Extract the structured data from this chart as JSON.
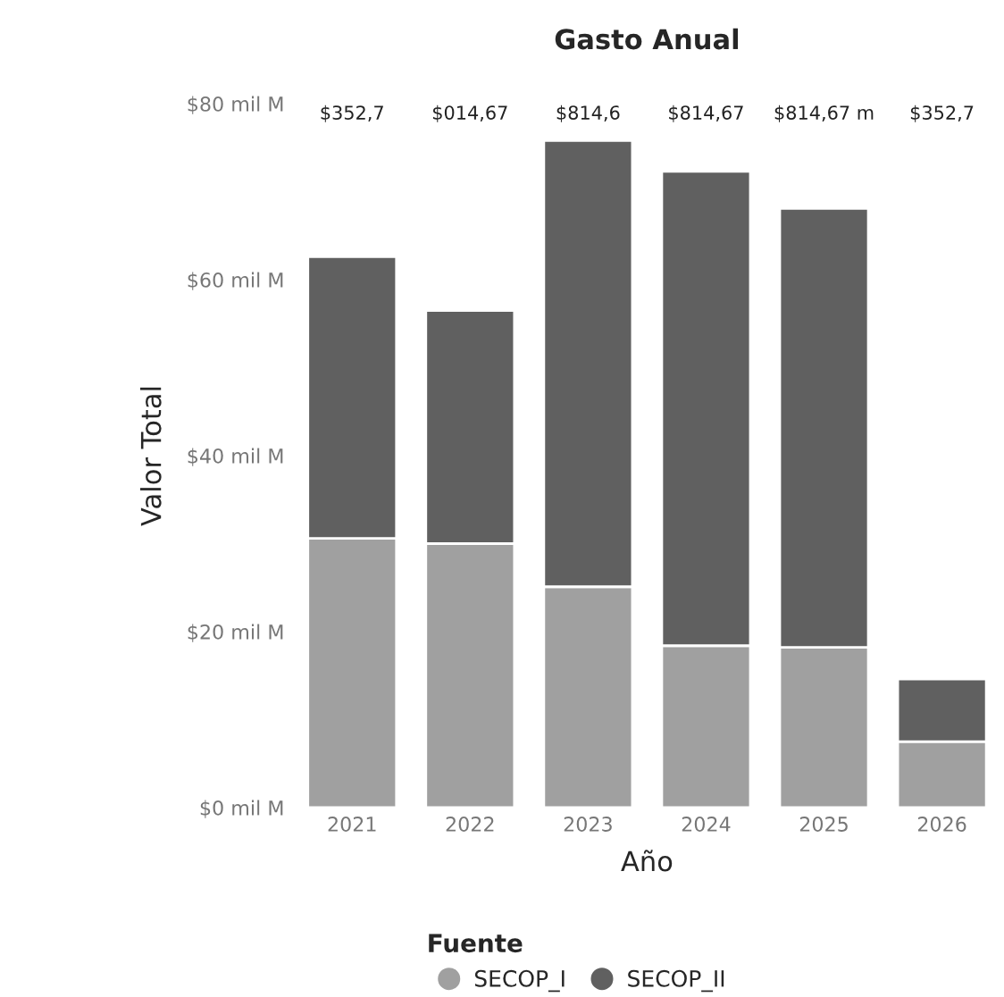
{
  "chart_data": {
    "type": "bar",
    "title": "Gasto Anual",
    "xlabel": "Año",
    "ylabel": "Valor Total",
    "legend_title": "Fuente",
    "stacked": true,
    "categories": [
      "2021",
      "2022",
      "2023",
      "2024",
      "2025",
      "2026"
    ],
    "series": [
      {
        "name": "SECOP_I",
        "color": "#a0a0a0",
        "values": [
          30.6,
          30.0,
          25.1,
          18.4,
          18.2,
          7.5
        ]
      },
      {
        "name": "SECOP_II",
        "color": "#606060",
        "values": [
          32.0,
          26.5,
          50.7,
          53.9,
          49.9,
          7.1
        ]
      }
    ],
    "ylim": [
      0,
      80
    ],
    "yticks": [
      {
        "value": 0,
        "label": "$0 mil M"
      },
      {
        "value": 20,
        "label": "$20 mil M"
      },
      {
        "value": 40,
        "label": "$40 mil M"
      },
      {
        "value": 60,
        "label": "$60 mil M"
      },
      {
        "value": 80,
        "label": "$80 mil M"
      }
    ],
    "annotations": [
      "$352,7",
      "$014,67",
      "$814,6",
      "$814,67",
      "$814,67 m",
      "$352,7"
    ],
    "legend": "bottom",
    "grid": false
  }
}
